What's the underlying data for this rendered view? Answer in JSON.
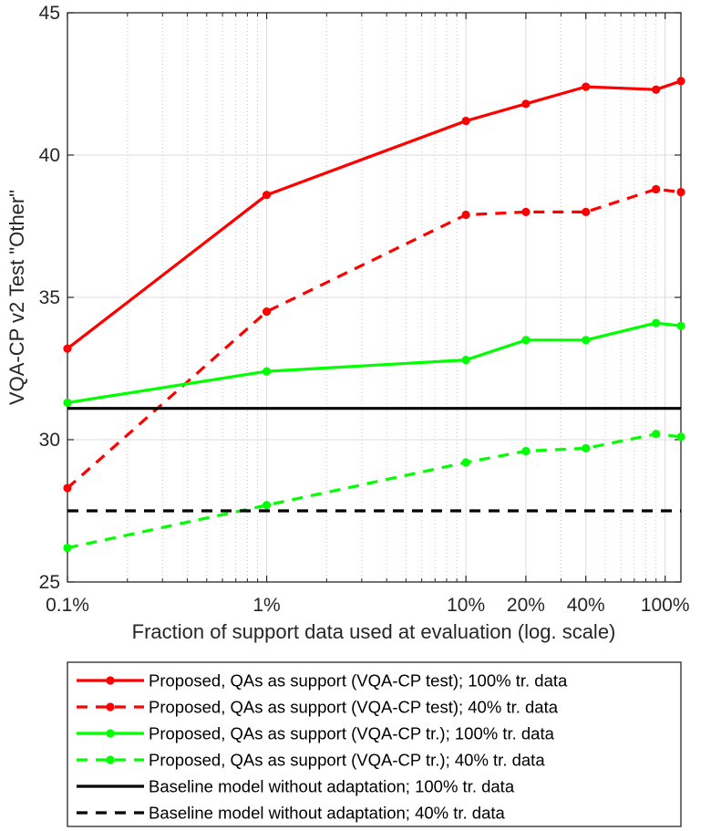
{
  "chart_data": {
    "type": "line",
    "xscale": "log",
    "xlim": [
      0.1,
      120
    ],
    "ylim": [
      25,
      45
    ],
    "xticks": [
      {
        "value": 0.1,
        "label": "0.1%"
      },
      {
        "value": 1,
        "label": "1%"
      },
      {
        "value": 10,
        "label": "10%"
      },
      {
        "value": 20,
        "label": "20%"
      },
      {
        "value": 40,
        "label": "40%"
      },
      {
        "value": 100,
        "label": "100%"
      }
    ],
    "yticks": [
      {
        "value": 25,
        "label": "25"
      },
      {
        "value": 30,
        "label": "30"
      },
      {
        "value": 35,
        "label": "35"
      },
      {
        "value": 40,
        "label": "40"
      },
      {
        "value": 45,
        "label": "45"
      }
    ],
    "xlabel": "Fraction of support data used at evaluation (log. scale)",
    "ylabel": "VQA-CP v2 Test \"Other\"",
    "grid": true,
    "legend_position": "bottom",
    "series": [
      {
        "name": "Proposed, QAs as support (VQA-CP test); 100% tr. data",
        "color": "#ff0000",
        "dash": "solid",
        "marker": true,
        "x": [
          0.1,
          1,
          10,
          20,
          40,
          90,
          120
        ],
        "values": [
          33.2,
          38.6,
          41.2,
          41.8,
          42.4,
          42.3,
          42.6
        ]
      },
      {
        "name": "Proposed, QAs as support (VQA-CP test); 40% tr. data",
        "color": "#ff0000",
        "dash": "dashed",
        "marker": true,
        "x": [
          0.1,
          1,
          10,
          20,
          40,
          90,
          120
        ],
        "values": [
          28.3,
          34.5,
          37.9,
          38.0,
          38.0,
          38.8,
          38.7
        ]
      },
      {
        "name": "Proposed, QAs as support (VQA-CP tr.); 100% tr. data",
        "color": "#00ff00",
        "dash": "solid",
        "marker": true,
        "x": [
          0.1,
          1,
          10,
          20,
          40,
          90,
          120
        ],
        "values": [
          31.3,
          32.4,
          32.8,
          33.5,
          33.5,
          34.1,
          34.0
        ]
      },
      {
        "name": "Proposed, QAs as support (VQA-CP tr.); 40% tr. data",
        "color": "#00ff00",
        "dash": "dashed",
        "marker": true,
        "x": [
          0.1,
          1,
          10,
          20,
          40,
          90,
          120
        ],
        "values": [
          26.2,
          27.7,
          29.2,
          29.6,
          29.7,
          30.2,
          30.1
        ]
      },
      {
        "name": "Baseline model without adaptation; 100% tr. data",
        "color": "#000000",
        "dash": "solid",
        "marker": false,
        "x": [
          0.1,
          120
        ],
        "values": [
          31.1,
          31.1
        ]
      },
      {
        "name": "Baseline model without adaptation; 40% tr. data",
        "color": "#000000",
        "dash": "dashed",
        "marker": false,
        "x": [
          0.1,
          120
        ],
        "values": [
          27.5,
          27.5
        ]
      }
    ]
  }
}
